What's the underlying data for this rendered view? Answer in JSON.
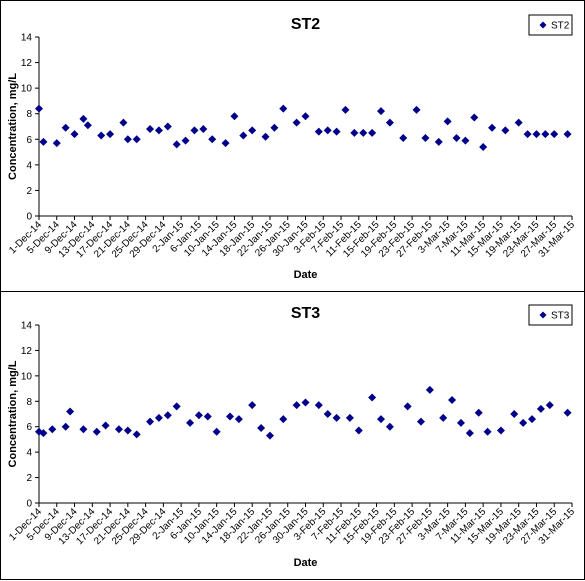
{
  "chart_data": [
    {
      "type": "scatter",
      "title": "ST2",
      "xlabel": "Date",
      "ylabel": "Concentration, mg/L",
      "ylim": [
        0,
        14
      ],
      "yticks": [
        0,
        2,
        4,
        6,
        8,
        10,
        12,
        14
      ],
      "xlim": [
        "2014-12-01",
        "2015-03-31"
      ],
      "xtick_labels": [
        "1-Dec-14",
        "5-Dec-14",
        "9-Dec-14",
        "13-Dec-14",
        "17-Dec-14",
        "21-Dec-14",
        "25-Dec-14",
        "29-Dec-14",
        "2-Jan-15",
        "6-Jan-15",
        "10-Jan-15",
        "14-Jan-15",
        "18-Jan-15",
        "22-Jan-15",
        "26-Jan-15",
        "30-Jan-15",
        "3-Feb-15",
        "7-Feb-15",
        "11-Feb-15",
        "15-Feb-15",
        "19-Feb-15",
        "23-Feb-15",
        "27-Feb-15",
        "3-Mar-15",
        "7-Mar-15",
        "11-Mar-15",
        "15-Mar-15",
        "19-Mar-15",
        "23-Mar-15",
        "27-Mar-15",
        "31-Mar-15"
      ],
      "legend_position": "top-right",
      "grid": false,
      "series": [
        {
          "name": "ST2",
          "color": "#00008b",
          "marker": "diamond",
          "x": [
            "2014-12-01",
            "2014-12-02",
            "2014-12-05",
            "2014-12-07",
            "2014-12-09",
            "2014-12-11",
            "2014-12-12",
            "2014-12-15",
            "2014-12-17",
            "2014-12-20",
            "2014-12-21",
            "2014-12-23",
            "2014-12-26",
            "2014-12-28",
            "2014-12-30",
            "2015-01-01",
            "2015-01-03",
            "2015-01-05",
            "2015-01-07",
            "2015-01-09",
            "2015-01-12",
            "2015-01-14",
            "2015-01-16",
            "2015-01-18",
            "2015-01-21",
            "2015-01-23",
            "2015-01-25",
            "2015-01-28",
            "2015-01-30",
            "2015-02-02",
            "2015-02-04",
            "2015-02-06",
            "2015-02-08",
            "2015-02-10",
            "2015-02-12",
            "2015-02-14",
            "2015-02-16",
            "2015-02-18",
            "2015-02-21",
            "2015-02-24",
            "2015-02-26",
            "2015-03-01",
            "2015-03-03",
            "2015-03-05",
            "2015-03-07",
            "2015-03-09",
            "2015-03-11",
            "2015-03-13",
            "2015-03-16",
            "2015-03-19",
            "2015-03-21",
            "2015-03-23",
            "2015-03-25",
            "2015-03-27",
            "2015-03-30"
          ],
          "y": [
            8.4,
            5.8,
            5.7,
            6.9,
            6.4,
            7.6,
            7.1,
            6.3,
            6.4,
            7.3,
            6.0,
            6.0,
            6.8,
            6.7,
            7.0,
            5.6,
            5.9,
            6.7,
            6.8,
            6.0,
            5.7,
            7.8,
            6.3,
            6.7,
            6.2,
            6.9,
            8.4,
            7.3,
            7.8,
            6.6,
            6.7,
            6.6,
            8.3,
            6.5,
            6.5,
            6.5,
            8.2,
            7.3,
            6.1,
            8.3,
            6.1,
            5.8,
            7.4,
            6.1,
            5.9,
            7.7,
            5.4,
            6.9,
            6.7,
            7.3,
            6.4,
            6.4,
            6.4,
            6.4,
            6.4
          ]
        }
      ]
    },
    {
      "type": "scatter",
      "title": "ST3",
      "xlabel": "Date",
      "ylabel": "Concentration, mg/L",
      "ylim": [
        0,
        14
      ],
      "yticks": [
        0,
        2,
        4,
        6,
        8,
        10,
        12,
        14
      ],
      "xlim": [
        "2014-12-01",
        "2015-03-31"
      ],
      "xtick_labels": [
        "1-Dec-14",
        "5-Dec-14",
        "9-Dec-14",
        "13-Dec-14",
        "17-Dec-14",
        "21-Dec-14",
        "25-Dec-14",
        "29-Dec-14",
        "2-Jan-15",
        "6-Jan-15",
        "10-Jan-15",
        "14-Jan-15",
        "18-Jan-15",
        "22-Jan-15",
        "26-Jan-15",
        "30-Jan-15",
        "3-Feb-15",
        "7-Feb-15",
        "11-Feb-15",
        "15-Feb-15",
        "19-Feb-15",
        "23-Feb-15",
        "27-Feb-15",
        "3-Mar-15",
        "7-Mar-15",
        "11-Mar-15",
        "15-Mar-15",
        "19-Mar-15",
        "23-Mar-15",
        "27-Mar-15",
        "31-Mar-15"
      ],
      "legend_position": "top-right",
      "grid": false,
      "series": [
        {
          "name": "ST3",
          "color": "#00008b",
          "marker": "diamond",
          "x": [
            "2014-12-01",
            "2014-12-02",
            "2014-12-04",
            "2014-12-07",
            "2014-12-08",
            "2014-12-11",
            "2014-12-14",
            "2014-12-16",
            "2014-12-19",
            "2014-12-21",
            "2014-12-23",
            "2014-12-26",
            "2014-12-28",
            "2014-12-30",
            "2015-01-01",
            "2015-01-04",
            "2015-01-06",
            "2015-01-08",
            "2015-01-10",
            "2015-01-13",
            "2015-01-15",
            "2015-01-18",
            "2015-01-20",
            "2015-01-22",
            "2015-01-25",
            "2015-01-28",
            "2015-01-30",
            "2015-02-02",
            "2015-02-04",
            "2015-02-06",
            "2015-02-09",
            "2015-02-11",
            "2015-02-14",
            "2015-02-16",
            "2015-02-18",
            "2015-02-22",
            "2015-02-25",
            "2015-02-27",
            "2015-03-02",
            "2015-03-04",
            "2015-03-06",
            "2015-03-08",
            "2015-03-10",
            "2015-03-12",
            "2015-03-15",
            "2015-03-18",
            "2015-03-20",
            "2015-03-22",
            "2015-03-24",
            "2015-03-26",
            "2015-03-30"
          ],
          "y": [
            5.6,
            5.5,
            5.8,
            6.0,
            7.2,
            5.8,
            5.6,
            6.1,
            5.8,
            5.7,
            5.4,
            6.4,
            6.7,
            6.9,
            7.6,
            6.3,
            6.9,
            6.8,
            5.6,
            6.8,
            6.6,
            7.7,
            5.9,
            5.3,
            6.6,
            7.7,
            7.9,
            7.7,
            7.0,
            6.7,
            6.7,
            5.7,
            8.3,
            6.6,
            6.0,
            7.6,
            6.4,
            8.9,
            6.7,
            8.1,
            6.3,
            5.5,
            7.1,
            5.6,
            5.7,
            7.0,
            6.3,
            6.6,
            7.4,
            7.7,
            7.1
          ]
        }
      ]
    }
  ]
}
